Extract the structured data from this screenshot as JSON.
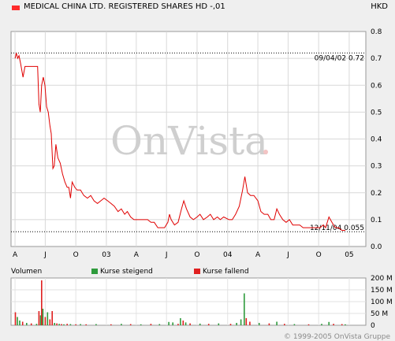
{
  "header": {
    "title": "MEDICAL CHINA LTD. REGISTERED SHARES HD -,01",
    "currency": "HKD",
    "series_color": "#ff2b2b"
  },
  "watermark": "OnVista",
  "volume_panel": {
    "label": "Volumen",
    "legend_up": "Kurse steigend",
    "legend_down": "Kurse fallend",
    "up_color": "#2e9b3c",
    "down_color": "#e02020"
  },
  "copyright": "© 1999-2005 OnVista Gruppe",
  "chart_data": [
    {
      "type": "line",
      "x_ticks": [
        "A",
        "J",
        "O",
        "03",
        "A",
        "J",
        "O",
        "04",
        "A",
        "J",
        "O",
        "05"
      ],
      "y_ticks": [
        "0.0",
        "0.1",
        "0.2",
        "0.3",
        "0.4",
        "0.5",
        "0.6",
        "0.7",
        "0.8"
      ],
      "ylim": [
        0,
        0.8
      ],
      "grid": true,
      "annotations": [
        {
          "text": "09/04/02 0.72",
          "value": 0.72
        },
        {
          "text": "12/11/04 0.055",
          "value": 0.055
        }
      ],
      "series": [
        {
          "points": [
            [
              "2002-04-01",
              0.7
            ],
            [
              "2002-04-05",
              0.72
            ],
            [
              "2002-04-09",
              0.7
            ],
            [
              "2002-04-13",
              0.71
            ],
            [
              "2002-04-18",
              0.68
            ],
            [
              "2002-04-25",
              0.63
            ],
            [
              "2002-05-01",
              0.67
            ],
            [
              "2002-05-10",
              0.67
            ],
            [
              "2002-05-20",
              0.67
            ],
            [
              "2002-06-01",
              0.67
            ],
            [
              "2002-06-08",
              0.67
            ],
            [
              "2002-06-12",
              0.53
            ],
            [
              "2002-06-16",
              0.5
            ],
            [
              "2002-06-20",
              0.6
            ],
            [
              "2002-06-25",
              0.63
            ],
            [
              "2002-06-30",
              0.6
            ],
            [
              "2002-07-05",
              0.52
            ],
            [
              "2002-07-10",
              0.5
            ],
            [
              "2002-07-15",
              0.45
            ],
            [
              "2002-07-19",
              0.42
            ],
            [
              "2002-07-24",
              0.29
            ],
            [
              "2002-07-28",
              0.3
            ],
            [
              "2002-08-02",
              0.38
            ],
            [
              "2002-08-08",
              0.33
            ],
            [
              "2002-08-15",
              0.31
            ],
            [
              "2002-08-22",
              0.27
            ],
            [
              "2002-08-29",
              0.24
            ],
            [
              "2002-09-05",
              0.22
            ],
            [
              "2002-09-10",
              0.22
            ],
            [
              "2002-09-15",
              0.18
            ],
            [
              "2002-09-20",
              0.24
            ],
            [
              "2002-09-28",
              0.22
            ],
            [
              "2002-10-05",
              0.21
            ],
            [
              "2002-10-15",
              0.21
            ],
            [
              "2002-10-25",
              0.19
            ],
            [
              "2002-11-05",
              0.18
            ],
            [
              "2002-11-15",
              0.19
            ],
            [
              "2002-11-25",
              0.17
            ],
            [
              "2002-12-05",
              0.16
            ],
            [
              "2002-12-15",
              0.17
            ],
            [
              "2002-12-25",
              0.18
            ],
            [
              "2003-01-05",
              0.17
            ],
            [
              "2003-01-15",
              0.16
            ],
            [
              "2003-01-25",
              0.15
            ],
            [
              "2003-02-05",
              0.13
            ],
            [
              "2003-02-15",
              0.14
            ],
            [
              "2003-02-25",
              0.12
            ],
            [
              "2003-03-05",
              0.13
            ],
            [
              "2003-03-15",
              0.11
            ],
            [
              "2003-03-25",
              0.1
            ],
            [
              "2003-04-05",
              0.1
            ],
            [
              "2003-04-15",
              0.1
            ],
            [
              "2003-04-25",
              0.1
            ],
            [
              "2003-05-05",
              0.1
            ],
            [
              "2003-05-15",
              0.09
            ],
            [
              "2003-05-25",
              0.09
            ],
            [
              "2003-06-05",
              0.07
            ],
            [
              "2003-06-15",
              0.07
            ],
            [
              "2003-06-25",
              0.07
            ],
            [
              "2003-07-05",
              0.09
            ],
            [
              "2003-07-10",
              0.12
            ],
            [
              "2003-07-15",
              0.1
            ],
            [
              "2003-07-25",
              0.08
            ],
            [
              "2003-08-05",
              0.09
            ],
            [
              "2003-08-15",
              0.14
            ],
            [
              "2003-08-22",
              0.17
            ],
            [
              "2003-08-30",
              0.14
            ],
            [
              "2003-09-10",
              0.11
            ],
            [
              "2003-09-20",
              0.1
            ],
            [
              "2003-10-01",
              0.11
            ],
            [
              "2003-10-10",
              0.12
            ],
            [
              "2003-10-20",
              0.1
            ],
            [
              "2003-11-01",
              0.11
            ],
            [
              "2003-11-10",
              0.12
            ],
            [
              "2003-11-20",
              0.1
            ],
            [
              "2003-12-01",
              0.11
            ],
            [
              "2003-12-10",
              0.1
            ],
            [
              "2003-12-20",
              0.11
            ],
            [
              "2004-01-05",
              0.1
            ],
            [
              "2004-01-15",
              0.1
            ],
            [
              "2004-01-25",
              0.12
            ],
            [
              "2004-02-05",
              0.15
            ],
            [
              "2004-02-15",
              0.21
            ],
            [
              "2004-02-22",
              0.26
            ],
            [
              "2004-03-01",
              0.2
            ],
            [
              "2004-03-10",
              0.19
            ],
            [
              "2004-03-20",
              0.19
            ],
            [
              "2004-04-01",
              0.17
            ],
            [
              "2004-04-10",
              0.13
            ],
            [
              "2004-04-20",
              0.12
            ],
            [
              "2004-05-01",
              0.12
            ],
            [
              "2004-05-10",
              0.1
            ],
            [
              "2004-05-20",
              0.1
            ],
            [
              "2004-05-28",
              0.14
            ],
            [
              "2004-06-05",
              0.12
            ],
            [
              "2004-06-15",
              0.1
            ],
            [
              "2004-06-25",
              0.09
            ],
            [
              "2004-07-05",
              0.1
            ],
            [
              "2004-07-15",
              0.08
            ],
            [
              "2004-07-25",
              0.08
            ],
            [
              "2004-08-05",
              0.08
            ],
            [
              "2004-08-15",
              0.07
            ],
            [
              "2004-08-25",
              0.07
            ],
            [
              "2004-09-05",
              0.07
            ],
            [
              "2004-09-15",
              0.07
            ],
            [
              "2004-09-25",
              0.07
            ],
            [
              "2004-10-05",
              0.07
            ],
            [
              "2004-10-15",
              0.08
            ],
            [
              "2004-10-22",
              0.07
            ],
            [
              "2004-11-01",
              0.11
            ],
            [
              "2004-11-10",
              0.09
            ],
            [
              "2004-11-20",
              0.07
            ],
            [
              "2004-11-30",
              0.07
            ],
            [
              "2004-12-10",
              0.06
            ],
            [
              "2004-12-20",
              0.06
            ]
          ]
        }
      ]
    },
    {
      "type": "bar",
      "y_ticks": [
        "0",
        "50 M",
        "100 M",
        "150 M",
        "200 M"
      ],
      "ylim": [
        0,
        200
      ],
      "unit": "M",
      "bars": [
        [
          "2002-04-02",
          55,
          "down"
        ],
        [
          "2002-04-08",
          35,
          "up"
        ],
        [
          "2002-04-15",
          20,
          "up"
        ],
        [
          "2002-04-24",
          15,
          "down"
        ],
        [
          "2002-05-06",
          10,
          "up"
        ],
        [
          "2002-05-20",
          8,
          "down"
        ],
        [
          "2002-06-05",
          6,
          "up"
        ],
        [
          "2002-06-12",
          60,
          "down"
        ],
        [
          "2002-06-17",
          42,
          "up"
        ],
        [
          "2002-06-20",
          190,
          "down"
        ],
        [
          "2002-06-24",
          70,
          "up"
        ],
        [
          "2002-07-01",
          35,
          "down"
        ],
        [
          "2002-07-08",
          55,
          "up"
        ],
        [
          "2002-07-15",
          25,
          "down"
        ],
        [
          "2002-07-22",
          60,
          "down"
        ],
        [
          "2002-07-29",
          10,
          "up"
        ],
        [
          "2002-08-05",
          8,
          "down"
        ],
        [
          "2002-08-12",
          6,
          "up"
        ],
        [
          "2002-08-19",
          5,
          "down"
        ],
        [
          "2002-08-26",
          4,
          "up"
        ],
        [
          "2002-09-05",
          6,
          "down"
        ],
        [
          "2002-09-15",
          5,
          "up"
        ],
        [
          "2002-10-01",
          4,
          "down"
        ],
        [
          "2002-10-15",
          5,
          "up"
        ],
        [
          "2002-11-01",
          4,
          "down"
        ],
        [
          "2002-12-01",
          5,
          "up"
        ],
        [
          "2003-01-15",
          4,
          "down"
        ],
        [
          "2003-02-15",
          6,
          "up"
        ],
        [
          "2003-03-15",
          5,
          "down"
        ],
        [
          "2003-04-15",
          4,
          "up"
        ],
        [
          "2003-05-15",
          6,
          "down"
        ],
        [
          "2003-06-10",
          5,
          "up"
        ],
        [
          "2003-07-08",
          14,
          "up"
        ],
        [
          "2003-07-20",
          12,
          "up"
        ],
        [
          "2003-08-05",
          6,
          "down"
        ],
        [
          "2003-08-12",
          30,
          "up"
        ],
        [
          "2003-08-20",
          20,
          "down"
        ],
        [
          "2003-08-28",
          12,
          "up"
        ],
        [
          "2003-09-10",
          8,
          "down"
        ],
        [
          "2003-10-10",
          7,
          "up"
        ],
        [
          "2003-11-05",
          6,
          "down"
        ],
        [
          "2003-12-05",
          8,
          "up"
        ],
        [
          "2004-01-10",
          6,
          "down"
        ],
        [
          "2004-01-28",
          10,
          "up"
        ],
        [
          "2004-02-10",
          25,
          "up"
        ],
        [
          "2004-02-20",
          135,
          "up"
        ],
        [
          "2004-02-26",
          30,
          "down"
        ],
        [
          "2004-03-08",
          15,
          "down"
        ],
        [
          "2004-04-05",
          10,
          "up"
        ],
        [
          "2004-05-05",
          8,
          "down"
        ],
        [
          "2004-05-28",
          15,
          "up"
        ],
        [
          "2004-06-20",
          6,
          "down"
        ],
        [
          "2004-07-20",
          5,
          "up"
        ],
        [
          "2004-09-01",
          4,
          "down"
        ],
        [
          "2004-10-10",
          6,
          "up"
        ],
        [
          "2004-11-01",
          14,
          "up"
        ],
        [
          "2004-11-15",
          6,
          "down"
        ],
        [
          "2004-12-10",
          5,
          "down"
        ],
        [
          "2004-12-20",
          4,
          "up"
        ]
      ]
    }
  ]
}
